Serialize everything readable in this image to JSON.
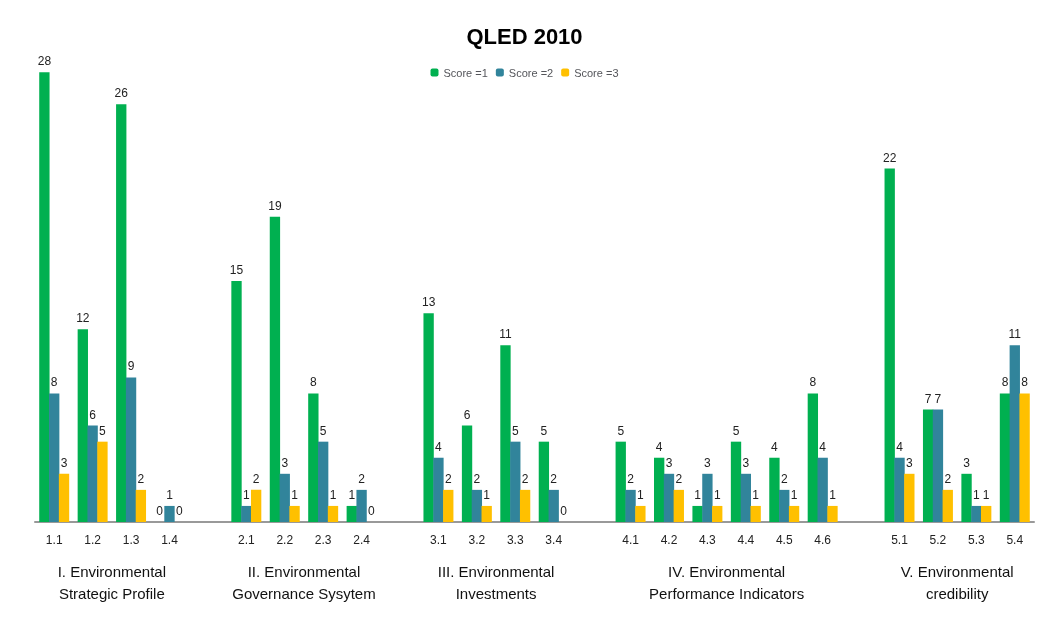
{
  "chart_data": {
    "type": "bar",
    "title": "QLED 2010",
    "categories": [
      "1.1",
      "1.2",
      "1.3",
      "1.4",
      null,
      "2.1",
      "2.2",
      "2.3",
      "2.4",
      null,
      "3.1",
      "3.2",
      "3.3",
      "3.4",
      null,
      "4.1",
      "4.2",
      "4.3",
      "4.4",
      "4.5",
      "4.6",
      null,
      "5.1",
      "5.2",
      "5.3",
      "5.4"
    ],
    "series": [
      {
        "name": "Score =1",
        "color": "#00b050",
        "values": [
          28,
          12,
          26,
          0,
          null,
          15,
          19,
          8,
          1,
          null,
          13,
          6,
          11,
          5,
          null,
          5,
          4,
          1,
          5,
          4,
          8,
          null,
          22,
          7,
          3,
          8
        ]
      },
      {
        "name": "Score =2",
        "color": "#31849b",
        "values": [
          8,
          6,
          9,
          1,
          null,
          1,
          3,
          5,
          2,
          null,
          4,
          2,
          5,
          2,
          null,
          2,
          3,
          3,
          3,
          2,
          4,
          null,
          4,
          7,
          1,
          11
        ]
      },
      {
        "name": "Score =3",
        "color": "#ffc000",
        "values": [
          3,
          5,
          2,
          0,
          null,
          2,
          1,
          1,
          0,
          null,
          2,
          1,
          2,
          0,
          null,
          1,
          2,
          1,
          1,
          1,
          1,
          null,
          3,
          2,
          1,
          8
        ]
      }
    ],
    "annotations": [
      "I. Environmental\nStrategic Profile",
      "II. Environmental\nGovernance Sysytem",
      "III. Environmental\nInvestments",
      "IV. Environmental\nPerformance Indicators",
      "V. Environmental\ncredibility"
    ],
    "data_labels": true,
    "legend": "top",
    "tick_labels": "x",
    "grid": false
  }
}
